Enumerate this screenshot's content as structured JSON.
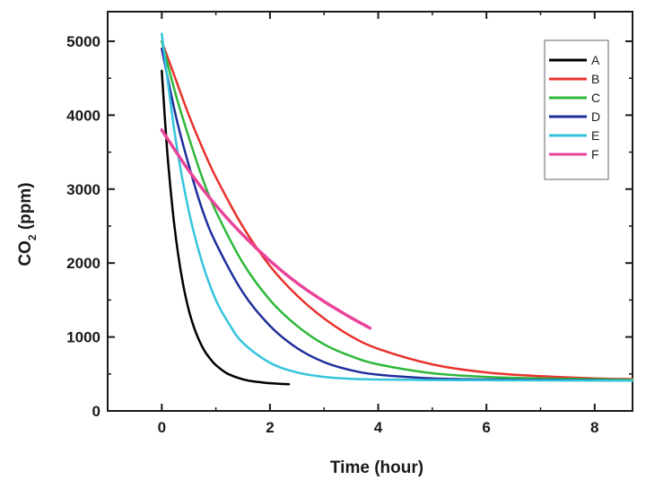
{
  "chart_data": {
    "type": "line",
    "xlabel": "Time (hour)",
    "ylabel_main": "CO",
    "ylabel_sub": "2",
    "ylabel_unit": " (ppm)",
    "xlim": [
      -1,
      8.7
    ],
    "ylim": [
      0,
      5400
    ],
    "xticks": [
      0,
      2,
      4,
      6,
      8
    ],
    "yticks": [
      0,
      1000,
      2000,
      3000,
      4000,
      5000
    ],
    "grid": false,
    "legend_position": "top-right",
    "series": [
      {
        "name": "A",
        "color": "#000000",
        "x": [
          0,
          0.1,
          0.2,
          0.3,
          0.4,
          0.5,
          0.6,
          0.7,
          0.8,
          0.9,
          1.0,
          1.2,
          1.4,
          1.6,
          1.8,
          2.0,
          2.2,
          2.35
        ],
        "y": [
          4600,
          3520,
          2720,
          2130,
          1690,
          1360,
          1120,
          940,
          800,
          700,
          620,
          510,
          450,
          410,
          390,
          375,
          365,
          360
        ]
      },
      {
        "name": "B",
        "color": "#e8322e",
        "x": [
          0,
          0.25,
          0.5,
          0.75,
          1.0,
          1.5,
          2.0,
          2.5,
          3.0,
          3.5,
          4.0,
          5.0,
          6.0,
          7.0,
          8.0,
          8.7
        ],
        "y": [
          5000,
          4500,
          4000,
          3560,
          3160,
          2490,
          1960,
          1560,
          1250,
          1010,
          840,
          630,
          520,
          470,
          440,
          430
        ]
      },
      {
        "name": "C",
        "color": "#2db83a",
        "x": [
          0,
          0.25,
          0.5,
          0.75,
          1.0,
          1.5,
          2.0,
          2.5,
          3.0,
          3.5,
          4.0,
          5.0,
          6.0,
          7.0,
          8.0,
          8.7
        ],
        "y": [
          5000,
          4300,
          3700,
          3150,
          2700,
          2000,
          1500,
          1150,
          900,
          740,
          630,
          510,
          460,
          440,
          430,
          420
        ]
      },
      {
        "name": "D",
        "color": "#1f2f9c",
        "x": [
          0,
          0.25,
          0.5,
          0.75,
          1.0,
          1.5,
          2.0,
          2.5,
          3.0,
          3.5,
          4.0,
          5.0,
          6.0,
          7.0,
          8.0,
          8.7
        ],
        "y": [
          4900,
          4020,
          3320,
          2720,
          2270,
          1600,
          1150,
          850,
          660,
          550,
          490,
          440,
          425,
          420,
          415,
          410
        ]
      },
      {
        "name": "E",
        "color": "#35c4dc",
        "x": [
          0,
          0.25,
          0.5,
          0.75,
          1.0,
          1.25,
          1.5,
          2.0,
          2.5,
          3.0,
          3.5,
          4.0,
          5.0,
          6.0,
          7.0,
          8.0,
          8.7
        ],
        "y": [
          5100,
          3700,
          2700,
          2000,
          1500,
          1170,
          920,
          650,
          520,
          460,
          435,
          425,
          418,
          415,
          412,
          410,
          410
        ]
      },
      {
        "name": "F",
        "color": "#e8449a",
        "x": [
          0,
          0.5,
          1.0,
          1.5,
          2.0,
          2.5,
          3.0,
          3.5,
          3.85
        ],
        "y": [
          3800,
          3250,
          2780,
          2380,
          2030,
          1730,
          1480,
          1260,
          1120
        ]
      }
    ]
  }
}
